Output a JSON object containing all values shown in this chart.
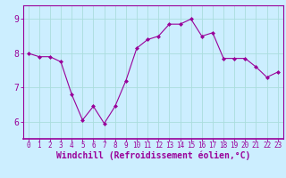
{
  "x": [
    0,
    1,
    2,
    3,
    4,
    5,
    6,
    7,
    8,
    9,
    10,
    11,
    12,
    13,
    14,
    15,
    16,
    17,
    18,
    19,
    20,
    21,
    22,
    23
  ],
  "y": [
    8.0,
    7.9,
    7.9,
    7.75,
    6.8,
    6.05,
    6.45,
    5.95,
    6.45,
    7.2,
    8.15,
    8.4,
    8.5,
    8.85,
    8.85,
    9.0,
    8.5,
    8.6,
    7.85,
    7.85,
    7.85,
    7.6,
    7.3,
    7.45
  ],
  "line_color": "#990099",
  "marker": "D",
  "marker_size": 2,
  "bg_color": "#cceeff",
  "grid_color": "#aadddd",
  "xlabel": "Windchill (Refroidissement éolien,°C)",
  "xlabel_color": "#990099",
  "xlabel_fontsize": 7,
  "ytick_labels": [
    "6",
    "7",
    "8",
    "9"
  ],
  "ytick_values": [
    6,
    7,
    8,
    9
  ],
  "ylim": [
    5.5,
    9.4
  ],
  "xlim": [
    -0.5,
    23.5
  ],
  "xtick_fontsize": 5.5,
  "ytick_fontsize": 7,
  "tick_color": "#990099",
  "spine_color": "#990099"
}
